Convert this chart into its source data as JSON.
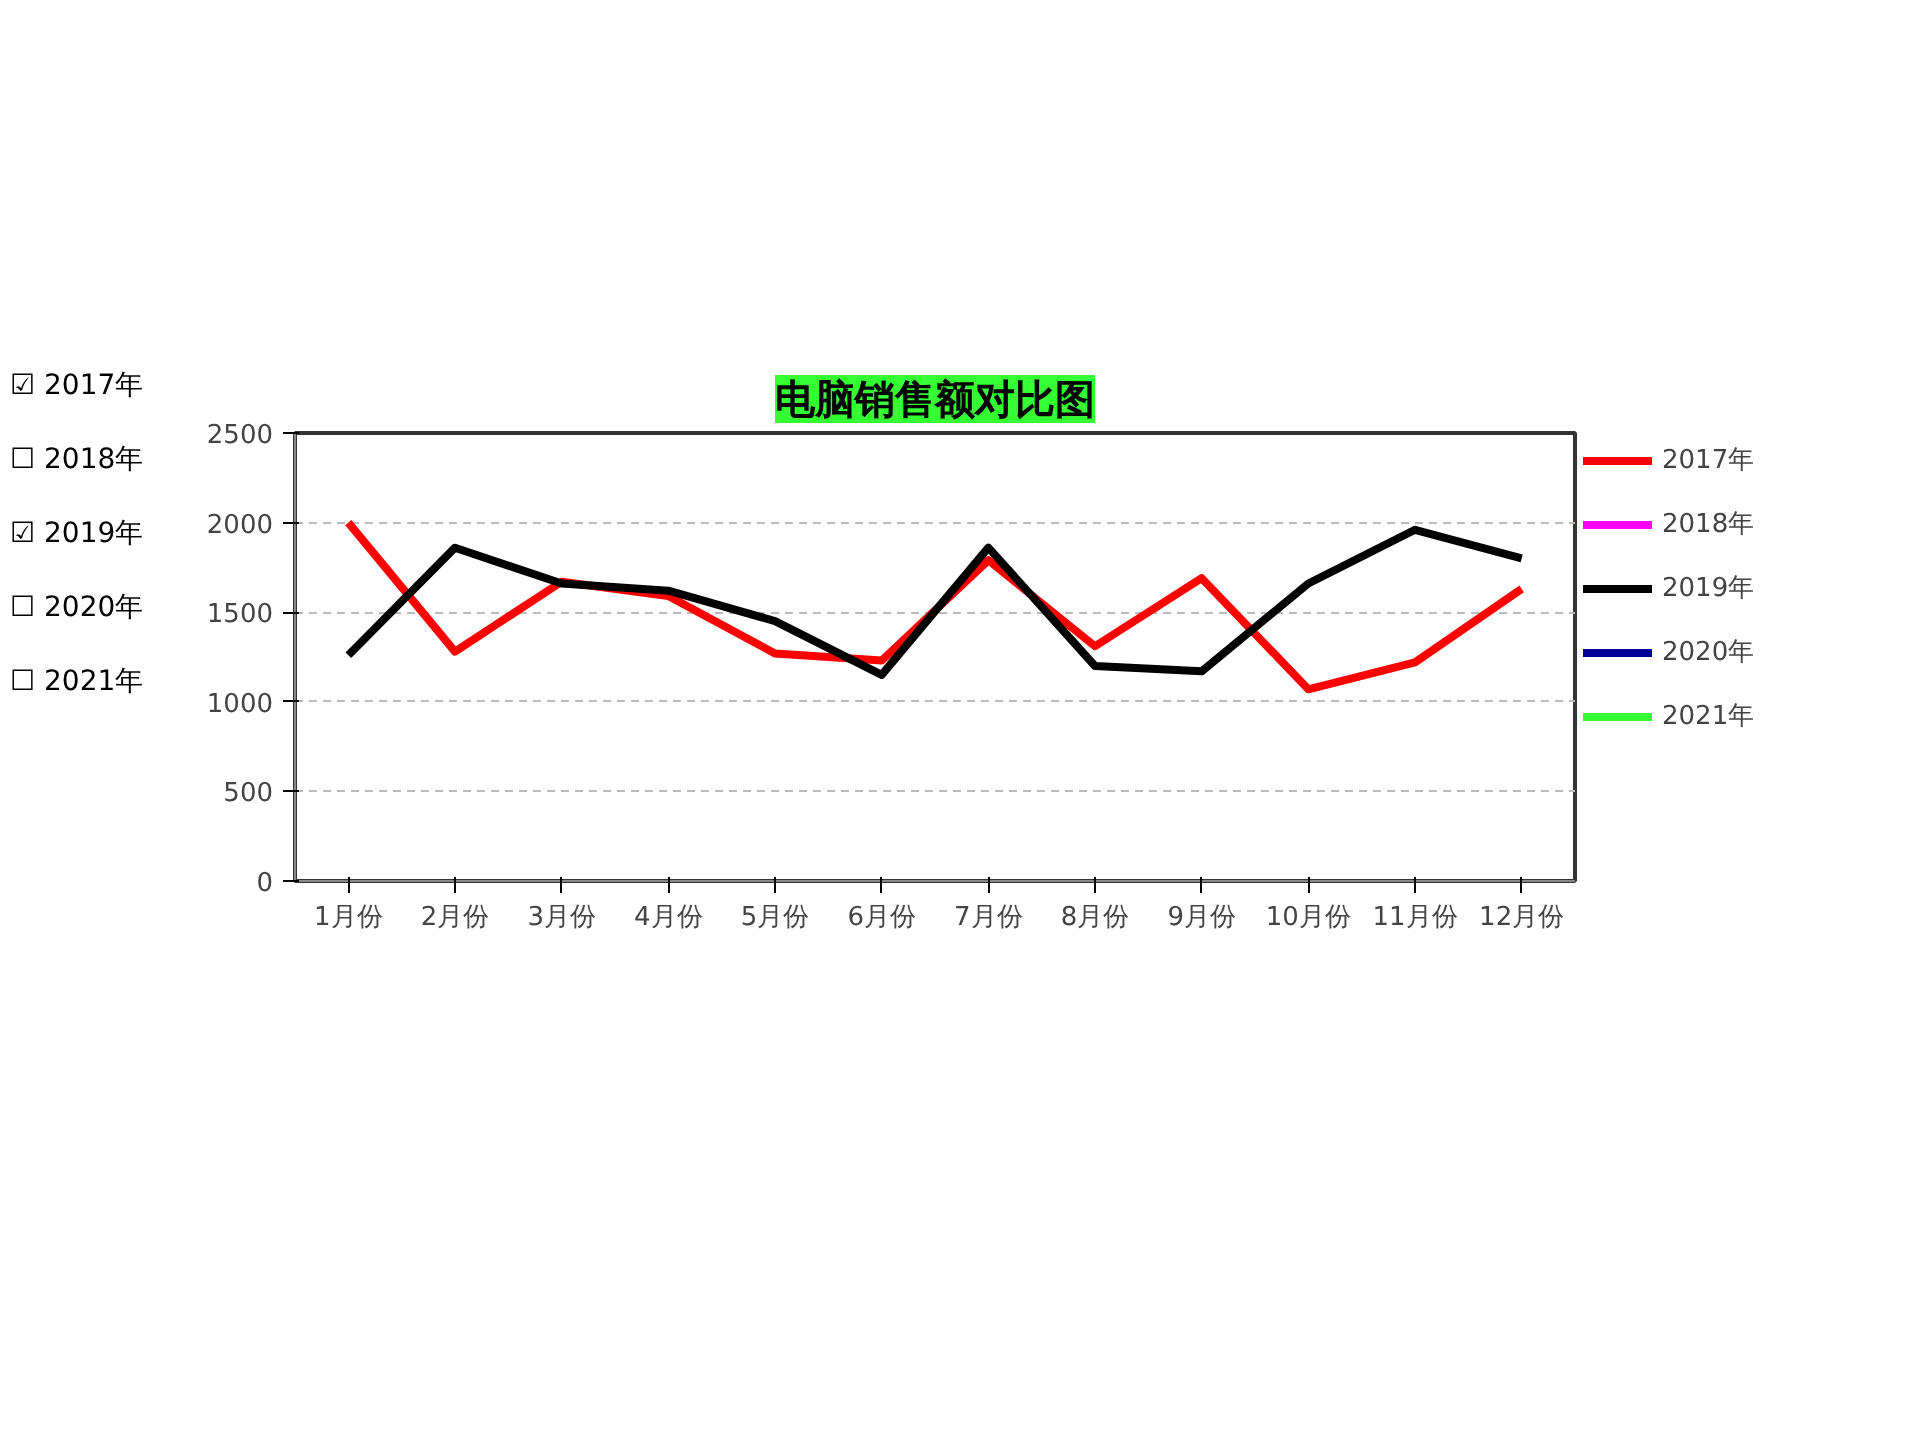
{
  "chart_data": {
    "type": "line",
    "title": "电脑销售额对比图",
    "categories": [
      "1月份",
      "2月份",
      "3月份",
      "4月份",
      "5月份",
      "6月份",
      "7月份",
      "8月份",
      "9月份",
      "10月份",
      "11月份",
      "12月份"
    ],
    "series": [
      {
        "name": "2017年",
        "color": "#ff0000",
        "values": [
          2000,
          1280,
          1670,
          1590,
          1270,
          1230,
          1790,
          1310,
          1690,
          1070,
          1220,
          1630
        ]
      },
      {
        "name": "2018年",
        "color": "#ff00ff",
        "values": [
          null,
          null,
          null,
          null,
          null,
          null,
          null,
          null,
          null,
          null,
          null,
          null
        ]
      },
      {
        "name": "2019年",
        "color": "#000000",
        "values": [
          1260,
          1860,
          1660,
          1620,
          1450,
          1150,
          1860,
          1200,
          1170,
          1660,
          1960,
          1800
        ]
      },
      {
        "name": "2020年",
        "color": "#000099",
        "values": [
          null,
          null,
          null,
          null,
          null,
          null,
          null,
          null,
          null,
          null,
          null,
          null
        ]
      },
      {
        "name": "2021年",
        "color": "#33ff33",
        "values": [
          null,
          null,
          null,
          null,
          null,
          null,
          null,
          null,
          null,
          null,
          null,
          null
        ]
      }
    ],
    "ylim": [
      0,
      2500
    ],
    "yticks": [
      0,
      500,
      1000,
      1500,
      2000,
      2500
    ],
    "grid": "y",
    "legend": "right",
    "marker": "none",
    "line_style": "solid",
    "annotations": [
      "☑ 2017年",
      "☐ 2018年",
      "☑ 2019年",
      "☐ 2020年",
      "☐ 2021年"
    ]
  }
}
